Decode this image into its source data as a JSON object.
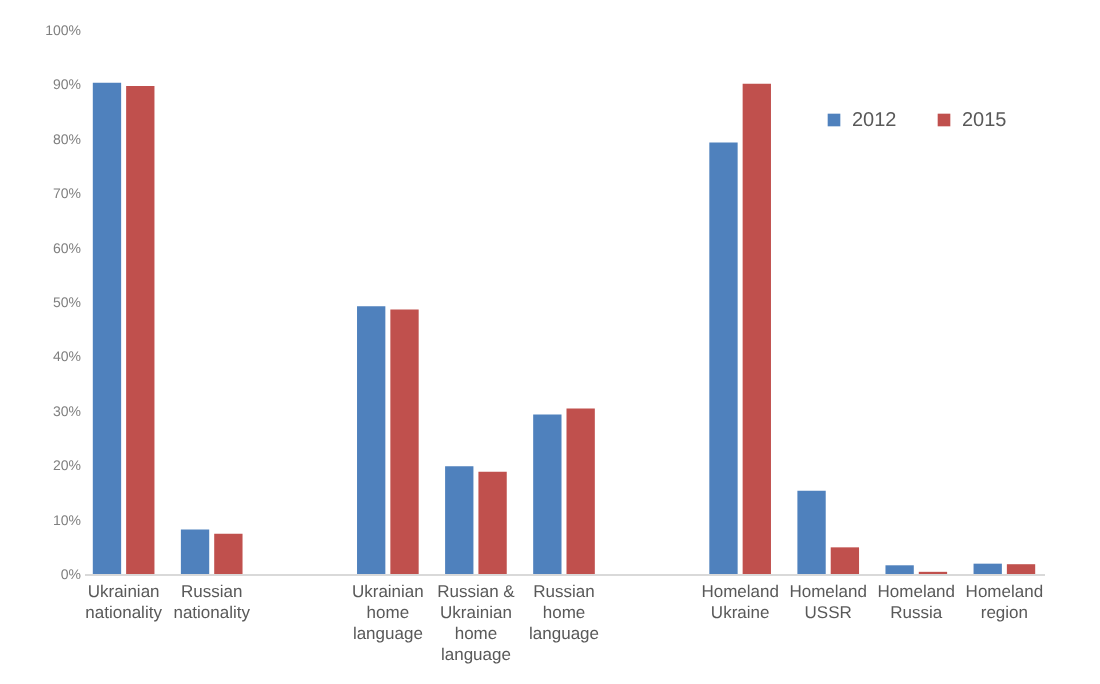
{
  "chart_data": {
    "type": "bar",
    "categories": [
      "Ukrainian nationality",
      "Russian nationality",
      null,
      "Ukrainian home language",
      "Russian & Ukrainian home language",
      "Russian home language",
      null,
      "Homeland Ukraine",
      "Homeland USSR",
      "Homeland Russia",
      "Homeland region"
    ],
    "series": [
      {
        "name": "2012",
        "color": "#4f81bd",
        "values": [
          90.3,
          8.2,
          null,
          49.2,
          19.8,
          29.3,
          null,
          79.3,
          15.3,
          1.6,
          1.9
        ]
      },
      {
        "name": "2015",
        "color": "#c0504d",
        "values": [
          89.7,
          7.4,
          null,
          48.6,
          18.8,
          30.4,
          null,
          90.1,
          4.9,
          0.4,
          1.8
        ]
      }
    ],
    "ylim": [
      0,
      100
    ],
    "yticks": [
      {
        "value": 0,
        "label": "0%"
      },
      {
        "value": 10,
        "label": "10%"
      },
      {
        "value": 20,
        "label": "20%"
      },
      {
        "value": 30,
        "label": "30%"
      },
      {
        "value": 40,
        "label": "40%"
      },
      {
        "value": 50,
        "label": "50%"
      },
      {
        "value": 60,
        "label": "60%"
      },
      {
        "value": 70,
        "label": "70%"
      },
      {
        "value": 80,
        "label": "80%"
      },
      {
        "value": 90,
        "label": "90%"
      },
      {
        "value": 100,
        "label": "100%"
      }
    ],
    "grid": false,
    "legend": "top right"
  }
}
